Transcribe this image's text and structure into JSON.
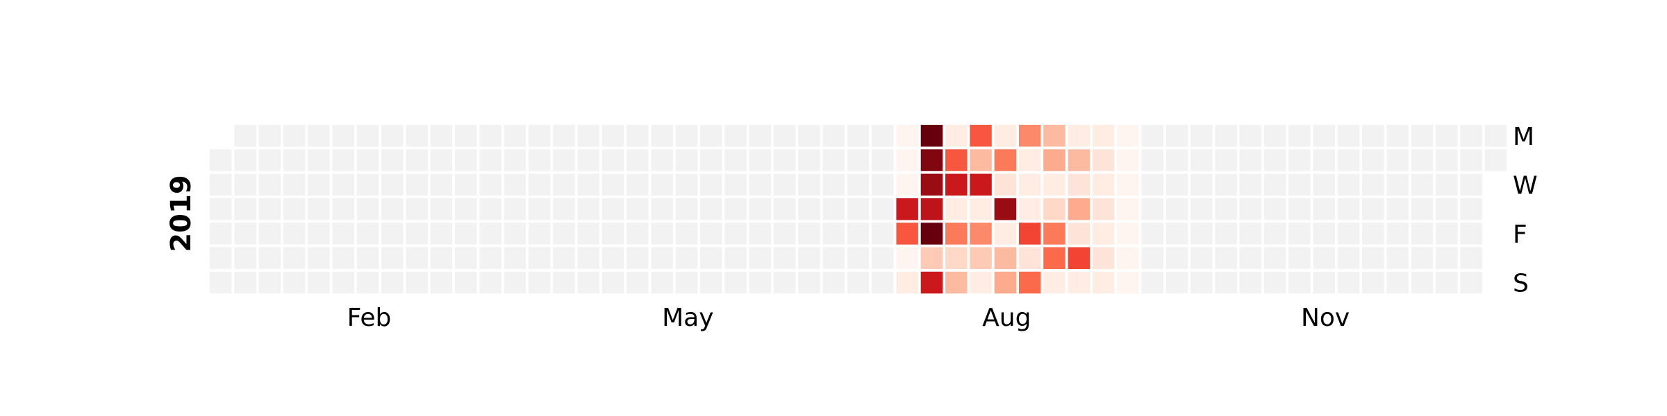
{
  "chart_data": {
    "type": "heatmap",
    "title": "",
    "year": "2019",
    "weeks": 53,
    "day_labels": [
      "M",
      "W",
      "F",
      "S"
    ],
    "day_label_rows": [
      0,
      2,
      4,
      6
    ],
    "month_labels": [
      "Feb",
      "May",
      "Aug",
      "Nov"
    ],
    "month_label_weeks": [
      6.5,
      19.5,
      32.5,
      45.5
    ],
    "colormap": "Reds",
    "empty_color": "#f2f2f2",
    "first_day_row": 1,
    "last_day_row": 1,
    "grid": false,
    "active_weeks": [
      28,
      29,
      30,
      31,
      32,
      33,
      34,
      35,
      36,
      37
    ],
    "intensity": [
      [
        0.0,
        0.0,
        0.0,
        0.75,
        0.55,
        0.0,
        0.05
      ],
      [
        1.0,
        0.95,
        0.9,
        0.8,
        1.0,
        0.2,
        0.75
      ],
      [
        0.05,
        0.55,
        0.75,
        0.05,
        0.45,
        0.15,
        0.25
      ],
      [
        0.55,
        0.25,
        0.75,
        0.05,
        0.4,
        0.2,
        0.05
      ],
      [
        0.05,
        0.45,
        0.1,
        0.9,
        0.05,
        0.25,
        0.3
      ],
      [
        0.4,
        0.05,
        0.05,
        0.05,
        0.6,
        0.1,
        0.5
      ],
      [
        0.25,
        0.3,
        0.05,
        0.15,
        0.45,
        0.5,
        0.05
      ],
      [
        0.05,
        0.25,
        0.1,
        0.3,
        0.1,
        0.6,
        0.05
      ],
      [
        0.05,
        0.1,
        0.05,
        0.1,
        0.05,
        0.1,
        0.05
      ],
      [
        0.0,
        0.0,
        0.0,
        0.0,
        0.0,
        0.0,
        0.0
      ]
    ]
  }
}
